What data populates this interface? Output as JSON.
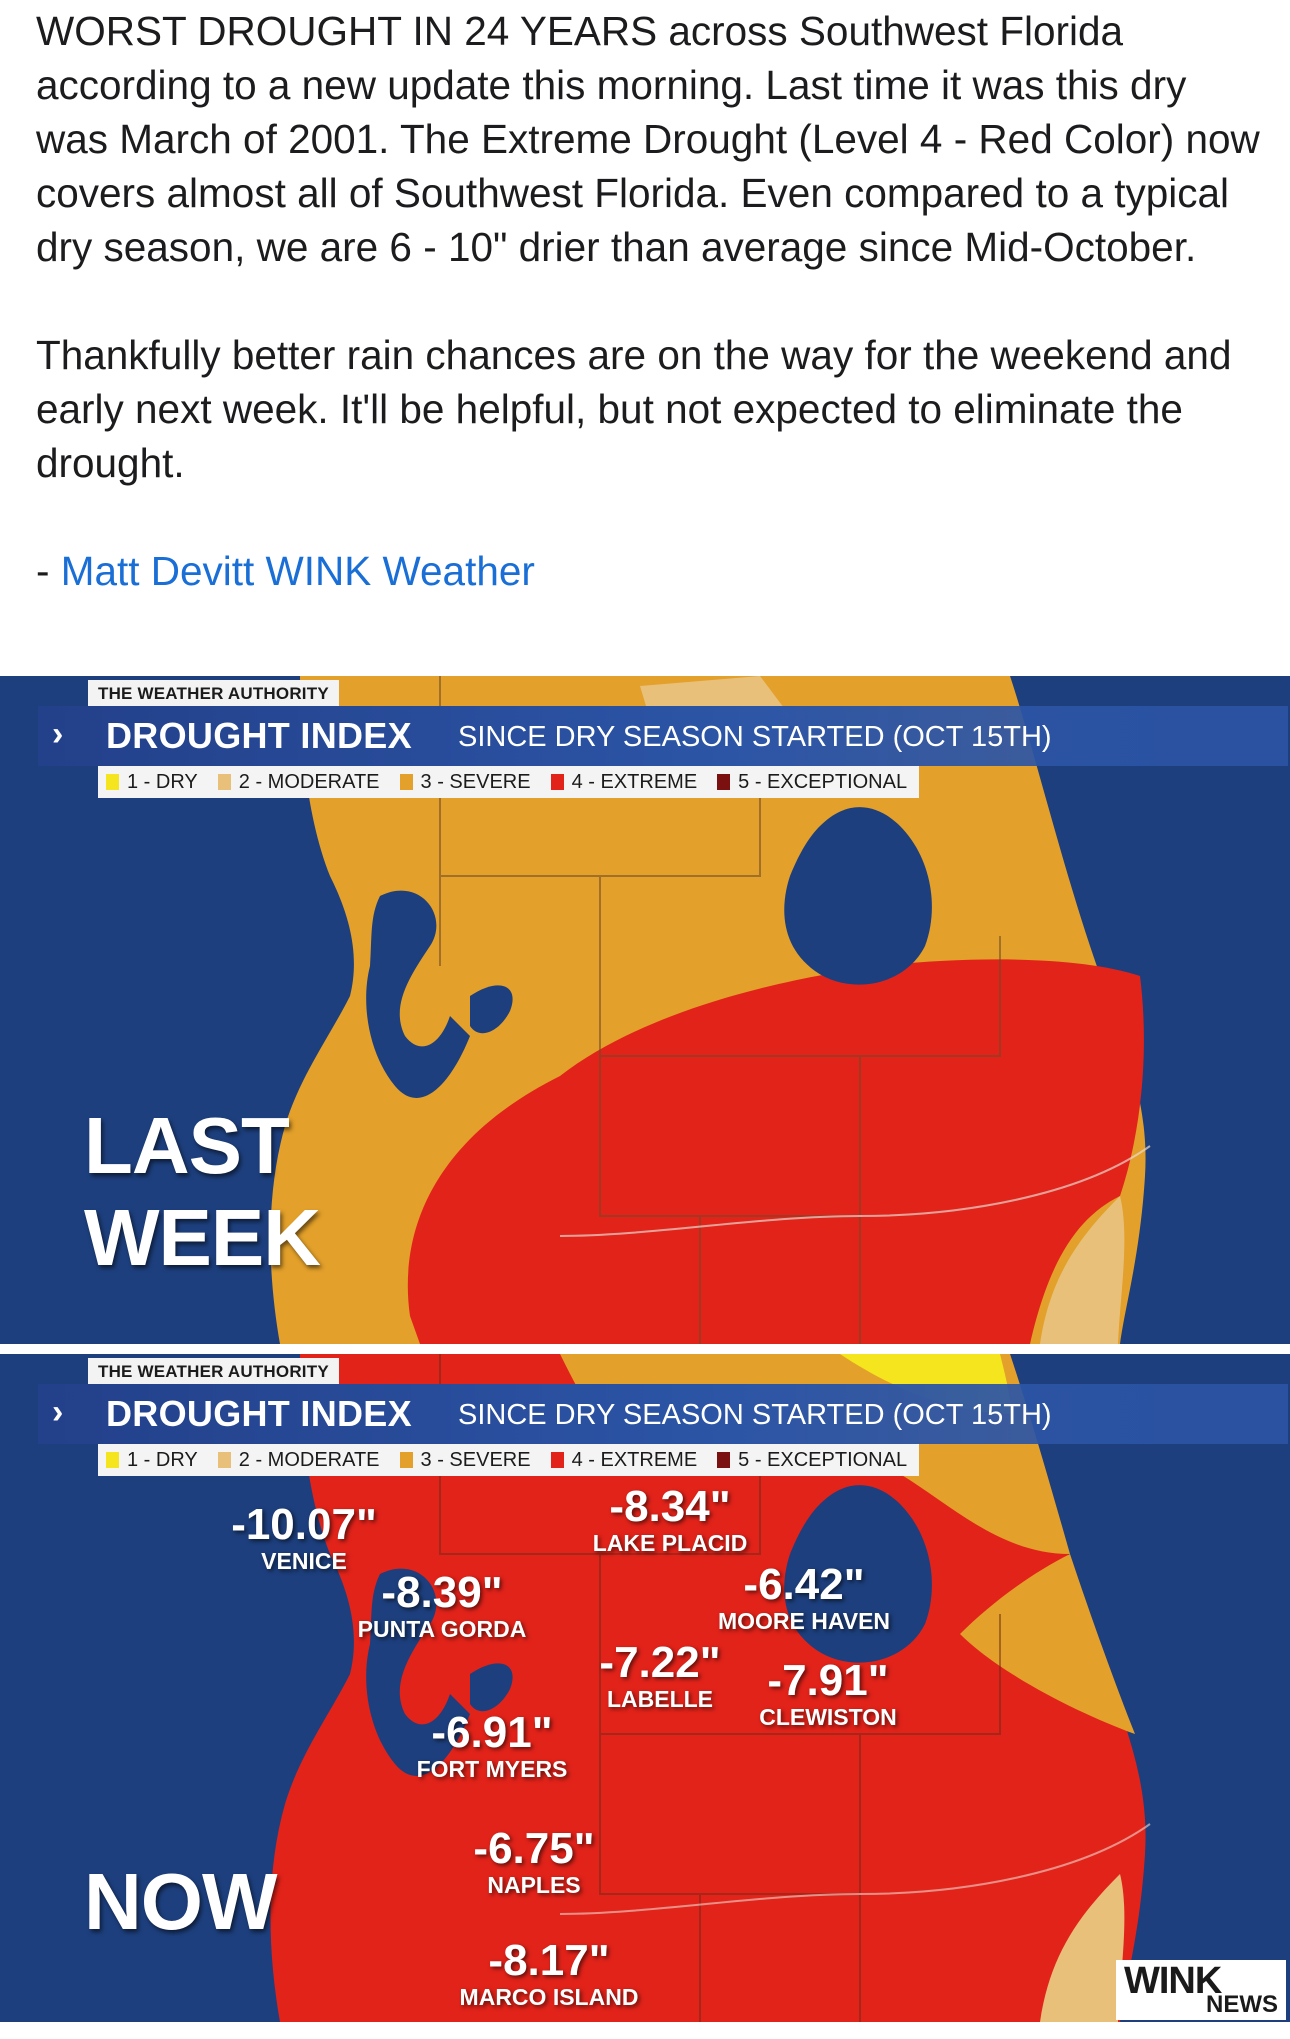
{
  "post": {
    "paragraph1": "WORST DROUGHT IN 24 YEARS across Southwest Florida according to a new update this morning. Last time it was this dry was March of 2001. The Extreme Drought (Level 4 - Red Color) now covers almost all of Southwest Florida. Even compared to a typical dry season, we are 6 - 10\" drier than average since Mid-October.",
    "paragraph2": "Thankfully better rain chances are on the way for the weekend and early next week. It'll be helpful, but not expected to eliminate the drought.",
    "author_prefix": "- ",
    "author_link": "Matt Devitt WINK Weather"
  },
  "graphic": {
    "authority": "THE WEATHER AUTHORITY",
    "chevron": "›",
    "title": "DROUGHT INDEX",
    "subtitle": "SINCE DRY SEASON STARTED (OCT 15TH)",
    "legend": [
      {
        "label": "1 - DRY",
        "color": "#f5e51e"
      },
      {
        "label": "2 - MODERATE",
        "color": "#e8c07a"
      },
      {
        "label": "3 - SEVERE",
        "color": "#e3a02a"
      },
      {
        "label": "4 - EXTREME",
        "color": "#e2231a"
      },
      {
        "label": "5 - EXCEPTIONAL",
        "color": "#7a1010"
      }
    ],
    "colors": {
      "water": "#1d3f7d",
      "dry": "#f5e51e",
      "moderate": "#e8c07a",
      "severe": "#e3a02a",
      "extreme": "#e2231a"
    }
  },
  "panel_last_week": {
    "label_line1": "LAST",
    "label_line2": "WEEK"
  },
  "panel_now": {
    "label": "NOW",
    "cities": [
      {
        "value": "-10.07\"",
        "name": "VENICE"
      },
      {
        "value": "-8.34\"",
        "name": "LAKE PLACID"
      },
      {
        "value": "-8.39\"",
        "name": "PUNTA GORDA"
      },
      {
        "value": "-6.42\"",
        "name": "MOORE HAVEN"
      },
      {
        "value": "-7.22\"",
        "name": "LABELLE"
      },
      {
        "value": "-7.91\"",
        "name": "CLEWISTON"
      },
      {
        "value": "-6.91\"",
        "name": "FORT MYERS"
      },
      {
        "value": "-6.75\"",
        "name": "NAPLES"
      },
      {
        "value": "-8.17\"",
        "name": "MARCO ISLAND"
      }
    ],
    "logo_line1": "WINK",
    "logo_line2": "NEWS"
  }
}
